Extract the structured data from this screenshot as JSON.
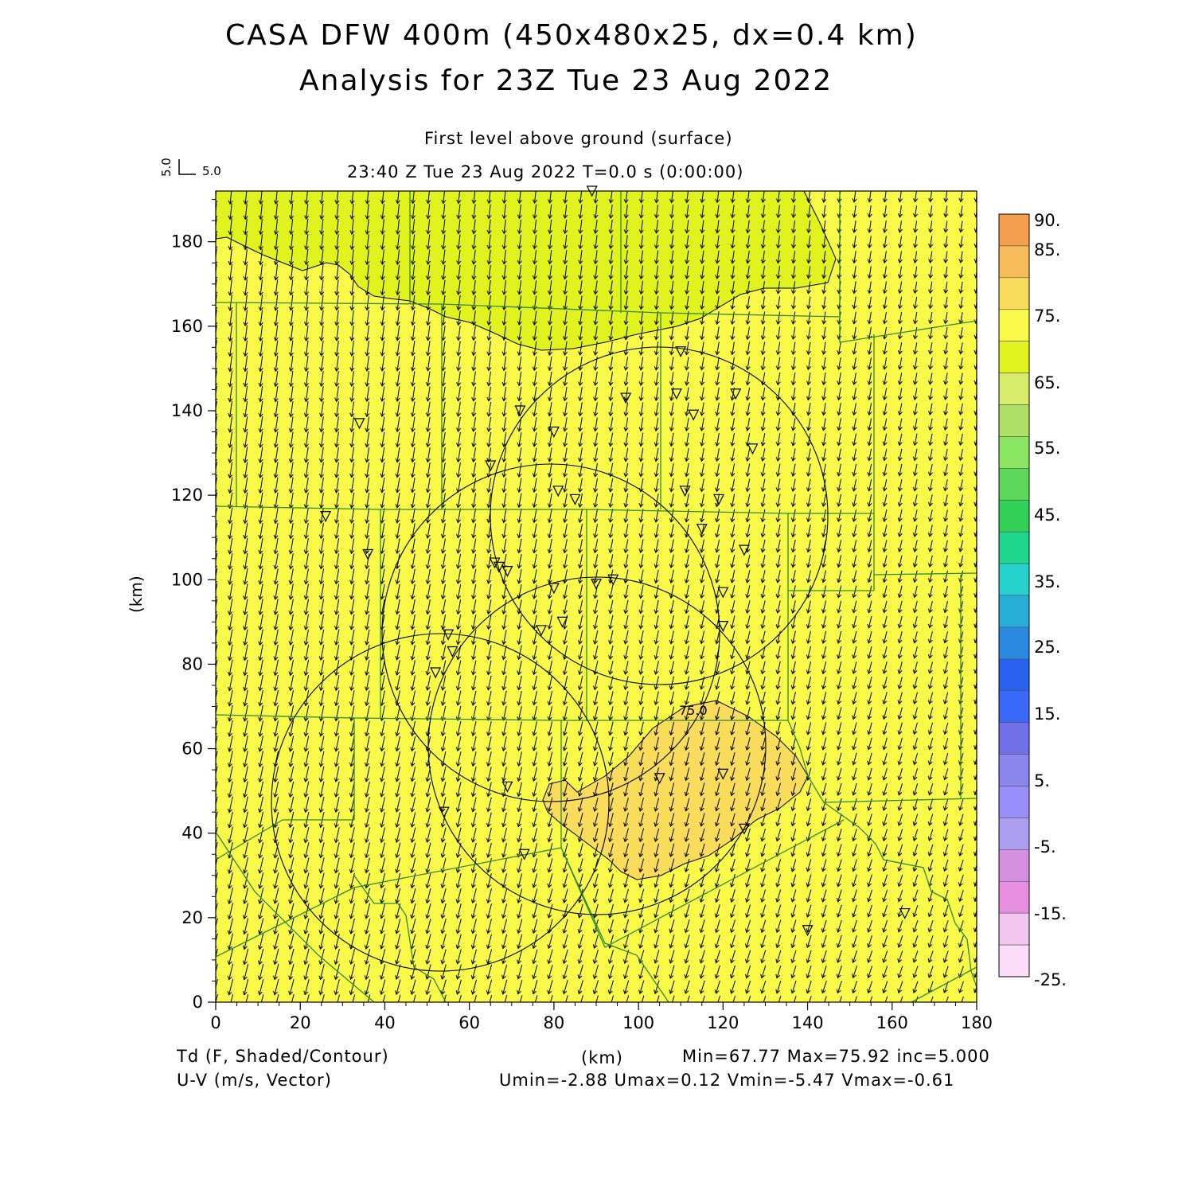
{
  "title_line1": "CASA DFW 400m (450x480x25, dx=0.4 km)",
  "title_line2": "Analysis for 23Z Tue 23 Aug 2022",
  "level_label": "First level above ground (surface)",
  "time_label": "23:40 Z Tue 23 Aug 2022   T=0.0 s (0:00:00)",
  "ref_vector": {
    "v_label": "5.0",
    "u_label": "5.0"
  },
  "axes": {
    "x_ticks": [
      "0",
      "20",
      "40",
      "60",
      "80",
      "100",
      "120",
      "140",
      "160",
      "180"
    ],
    "y_ticks": [
      "0",
      "20",
      "40",
      "60",
      "80",
      "100",
      "120",
      "140",
      "160",
      "180"
    ],
    "y_label": "(km)",
    "x_label": "(km)",
    "x_range": [
      0,
      180
    ],
    "y_range": [
      0,
      192
    ]
  },
  "contour_label": "75.0",
  "colorbar": {
    "labels": [
      "90.",
      "85.",
      "75.",
      "65.",
      "55.",
      "45.",
      "35.",
      "25.",
      "15.",
      "5.",
      "-5.",
      "-15.",
      "-25."
    ],
    "colors": [
      "#f4a04e",
      "#f6bc5a",
      "#f9dc5c",
      "#f9f94a",
      "#e1f31e",
      "#d7ec6a",
      "#aee066",
      "#8ae660",
      "#5ed85a",
      "#32d258",
      "#1ed68e",
      "#26d2ce",
      "#27aed8",
      "#2a8ae0",
      "#2a62f0",
      "#3a68fa",
      "#7270e8",
      "#8a86ee",
      "#9a8efa",
      "#ac9ef0",
      "#d690e0",
      "#e68ee0",
      "#f2c6ee",
      "#fadcf8"
    ]
  },
  "field_colors": {
    "yellow": "#f9f94a",
    "greenyellow": "#e1f31e",
    "orange": "#f9dc5c"
  },
  "stations": [
    [
      89,
      192
    ],
    [
      110,
      154
    ],
    [
      109,
      144
    ],
    [
      123,
      144
    ],
    [
      97,
      143
    ],
    [
      113,
      139
    ],
    [
      72,
      140
    ],
    [
      80,
      135
    ],
    [
      34,
      137
    ],
    [
      127,
      131
    ],
    [
      65,
      127
    ],
    [
      81,
      121
    ],
    [
      85,
      119
    ],
    [
      111,
      121
    ],
    [
      119,
      119
    ],
    [
      26,
      115
    ],
    [
      115,
      112
    ],
    [
      36,
      106
    ],
    [
      125,
      107
    ],
    [
      66,
      104
    ],
    [
      69,
      102
    ],
    [
      67,
      103
    ],
    [
      94,
      100
    ],
    [
      90,
      99
    ],
    [
      80,
      98
    ],
    [
      120,
      97
    ],
    [
      82,
      90
    ],
    [
      120,
      89
    ],
    [
      77,
      88
    ],
    [
      55,
      87
    ],
    [
      56,
      83
    ],
    [
      52,
      78
    ],
    [
      120,
      54
    ],
    [
      105,
      53
    ],
    [
      69,
      51
    ],
    [
      54,
      45
    ],
    [
      125,
      41
    ],
    [
      73,
      35
    ],
    [
      163,
      21
    ],
    [
      140,
      17
    ]
  ],
  "footer": {
    "field_label": "Td (F, Shaded/Contour)",
    "vector_label": "U-V (m/s, Vector)",
    "unit_label": "(km)",
    "stats_line1": "Min=67.77 Max=75.92 inc=5.000",
    "stats_line2": "Umin=-2.88 Umax=0.12 Vmin=-5.47 Vmax=-0.61"
  }
}
